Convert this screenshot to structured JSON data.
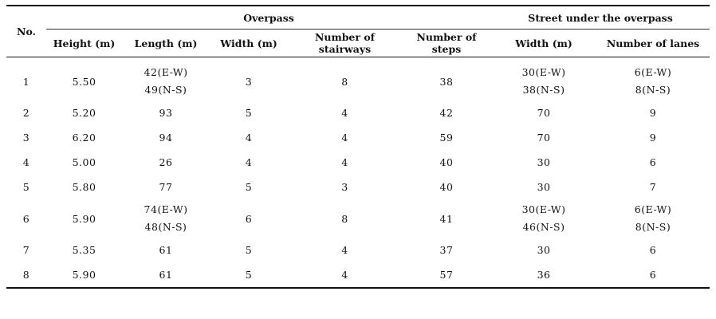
{
  "header": {
    "no": "No.",
    "overpass": "Overpass",
    "street": "Street under the overpass",
    "columns": [
      "Height (m)",
      "Length (m)",
      "Width (m)",
      "Number of stairways",
      "Number of steps",
      "Width (m)",
      "Number of lanes"
    ]
  },
  "rows": [
    {
      "no": "1",
      "height": "5.50",
      "length": [
        "42(E-W)",
        "49(N-S)"
      ],
      "width": "3",
      "stairways": "8",
      "steps": "38",
      "street_width": [
        "30(E-W)",
        "38(N-S)"
      ],
      "lanes": [
        "6(E-W)",
        "8(N-S)"
      ]
    },
    {
      "no": "2",
      "height": "5.20",
      "length": [
        "93"
      ],
      "width": "5",
      "stairways": "4",
      "steps": "42",
      "street_width": [
        "70"
      ],
      "lanes": [
        "9"
      ]
    },
    {
      "no": "3",
      "height": "6.20",
      "length": [
        "94"
      ],
      "width": "4",
      "stairways": "4",
      "steps": "59",
      "street_width": [
        "70"
      ],
      "lanes": [
        "9"
      ]
    },
    {
      "no": "4",
      "height": "5.00",
      "length": [
        "26"
      ],
      "width": "4",
      "stairways": "4",
      "steps": "40",
      "street_width": [
        "30"
      ],
      "lanes": [
        "6"
      ]
    },
    {
      "no": "5",
      "height": "5.80",
      "length": [
        "77"
      ],
      "width": "5",
      "stairways": "3",
      "steps": "40",
      "street_width": [
        "30"
      ],
      "lanes": [
        "7"
      ]
    },
    {
      "no": "6",
      "height": "5.90",
      "length": [
        "74(E-W)",
        "48(N-S)"
      ],
      "width": "6",
      "stairways": "8",
      "steps": "41",
      "street_width": [
        "30(E-W)",
        "46(N-S)"
      ],
      "lanes": [
        "6(E-W)",
        "8(N-S)"
      ]
    },
    {
      "no": "7",
      "height": "5.35",
      "length": [
        "61"
      ],
      "width": "5",
      "stairways": "4",
      "steps": "37",
      "street_width": [
        "30"
      ],
      "lanes": [
        "6"
      ]
    },
    {
      "no": "8",
      "height": "5.90",
      "length": [
        "61"
      ],
      "width": "5",
      "stairways": "4",
      "steps": "57",
      "street_width": [
        "36"
      ],
      "lanes": [
        "6"
      ]
    }
  ]
}
